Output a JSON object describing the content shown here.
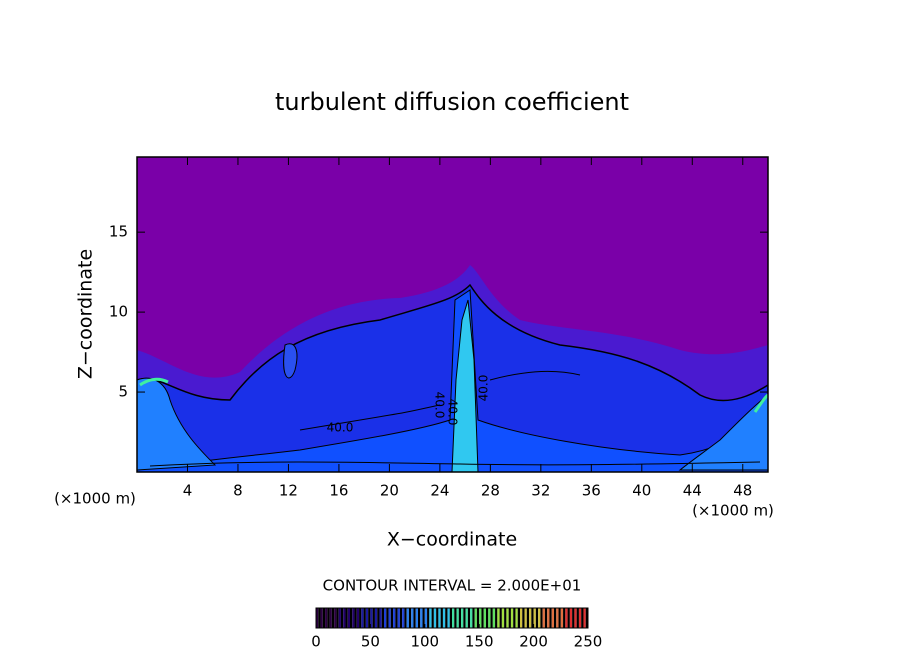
{
  "chart_data": {
    "type": "contour",
    "title": "turbulent diffusion coefficient",
    "xlabel": "X−coordinate",
    "ylabel": "Z−coordinate",
    "xunit": "(×1000 m)",
    "yunit": "(×1000 m)",
    "xlim": [
      0,
      50
    ],
    "ylim": [
      0,
      19.7
    ],
    "xticks": [
      4,
      8,
      12,
      16,
      20,
      24,
      28,
      32,
      36,
      40,
      44,
      48
    ],
    "yticks": [
      5,
      10,
      15
    ],
    "contour_interval": "CONTOUR INTERVAL = 2.000E+01",
    "contour_labels": [
      "40.0",
      "40.0",
      "40.0",
      "40.0"
    ],
    "colorbar": {
      "clim": [
        0,
        250
      ],
      "ticks": [
        0,
        50,
        100,
        150,
        200,
        250
      ],
      "colors": [
        "#2a0040",
        "#20006a",
        "#1a1aa0",
        "#1e40d8",
        "#2a80f0",
        "#30c0e8",
        "#40e0a0",
        "#60e060",
        "#a0e040",
        "#d0c040",
        "#e07040",
        "#e03030"
      ]
    }
  }
}
